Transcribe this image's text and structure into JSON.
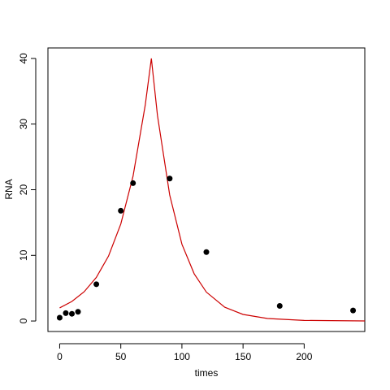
{
  "chart_data": {
    "type": "scatter",
    "xlabel": "times",
    "ylabel": "RNA",
    "xlim": [
      -9.6,
      249.6
    ],
    "ylim": [
      -1.6,
      41.6
    ],
    "xticks": [
      0,
      50,
      100,
      150,
      200
    ],
    "yticks": [
      0,
      10,
      20,
      30,
      40
    ],
    "grid": false,
    "series": [
      {
        "type": "scatter",
        "color": "#000000",
        "x": [
          0,
          5,
          10,
          15,
          30,
          50,
          60,
          90,
          120,
          180,
          240
        ],
        "values": [
          0.5,
          1.2,
          1.1,
          1.4,
          5.6,
          16.8,
          21,
          21.7,
          10.5,
          2.3,
          1.6
        ]
      },
      {
        "type": "line",
        "color": "#cc0000",
        "x": [
          0,
          10,
          20,
          30,
          40,
          50,
          60,
          70,
          75,
          80,
          90,
          100,
          110,
          120,
          135,
          150,
          170,
          200,
          250
        ],
        "values": [
          2,
          2.98,
          4.45,
          6.64,
          9.91,
          14.78,
          22.05,
          32.9,
          40,
          31.3,
          19.2,
          11.7,
          7.2,
          4.4,
          2.1,
          1.0,
          0.38,
          0.09,
          0.01
        ]
      }
    ]
  }
}
